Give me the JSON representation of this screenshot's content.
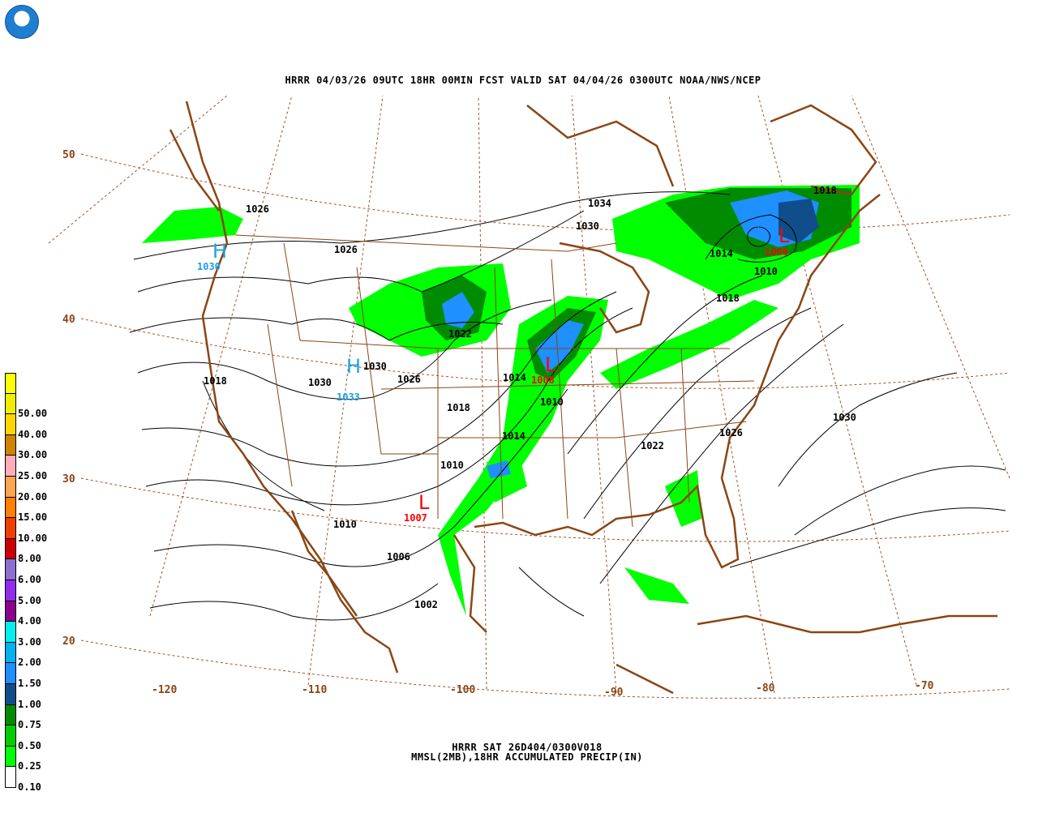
{
  "title": "HRRR 04/03/26 09UTC 18HR 00MIN FCST VALID SAT 04/04/26 0300UTC NOAA/NWS/NCEP",
  "logo": "NOAA",
  "footer": {
    "line1": "HRRR SAT 26D404/0300V018",
    "line2": "MMSL(2MB),18HR ACCUMULATED PRECIP(IN)"
  },
  "legend": [
    {
      "label": "",
      "color": "#ffff00"
    },
    {
      "label": "50.00",
      "color": "#eeee00"
    },
    {
      "label": "40.00",
      "color": "#ffd700"
    },
    {
      "label": "30.00",
      "color": "#cd8500"
    },
    {
      "label": "25.00",
      "color": "#ffaeb9"
    },
    {
      "label": "20.00",
      "color": "#ffa54f"
    },
    {
      "label": "15.00",
      "color": "#ff7f00"
    },
    {
      "label": "10.00",
      "color": "#ee4000"
    },
    {
      "label": "8.00",
      "color": "#cd0000"
    },
    {
      "label": "6.00",
      "color": "#8b6fcf"
    },
    {
      "label": "5.00",
      "color": "#912cee"
    },
    {
      "label": "4.00",
      "color": "#8b008b"
    },
    {
      "label": "3.00",
      "color": "#00eeee"
    },
    {
      "label": "2.00",
      "color": "#00b2ee"
    },
    {
      "label": "1.50",
      "color": "#1e90ff"
    },
    {
      "label": "1.00",
      "color": "#104e8b"
    },
    {
      "label": "0.75",
      "color": "#008b00"
    },
    {
      "label": "0.50",
      "color": "#00cd00"
    },
    {
      "label": "0.25",
      "color": "#00ff00"
    },
    {
      "label": "0.10",
      "color": "#ffffff"
    }
  ],
  "latitudes": [
    "50",
    "40",
    "30",
    "20"
  ],
  "longitudes": [
    "-120",
    "-110",
    "-100",
    "-90",
    "-80",
    "-70"
  ],
  "isobar_labels": [
    "1026",
    "1026",
    "1034",
    "1030",
    "1018",
    "1014",
    "1010",
    "1018",
    "1022",
    "1018",
    "1030",
    "1030",
    "1026",
    "1014",
    "1010",
    "1018",
    "1014",
    "1022",
    "1026",
    "1030",
    "1010",
    "1010",
    "1006",
    "1002"
  ],
  "pressure_centers": [
    {
      "type": "H",
      "value": "1030",
      "color": "#1ea0e6"
    },
    {
      "type": "H",
      "value": "1033",
      "color": "#1ea0e6"
    },
    {
      "type": "L",
      "value": "1008",
      "color": "#ff0000"
    },
    {
      "type": "L",
      "value": "1007",
      "color": "#ff0000"
    },
    {
      "type": "L",
      "value": "1006",
      "color": "#ff0000"
    }
  ],
  "colors": {
    "coast": "#8b4513",
    "grid": "#a0522d",
    "isobar": "#000000"
  }
}
